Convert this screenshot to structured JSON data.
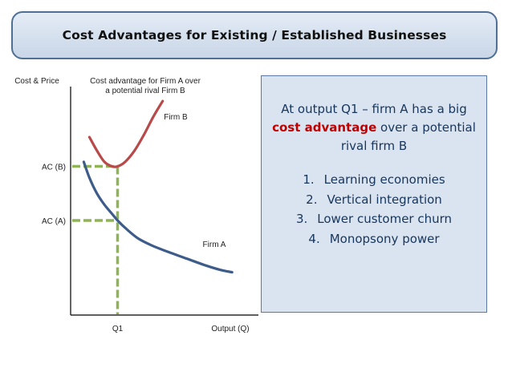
{
  "title": "Cost Advantages for Existing / Established Businesses",
  "info_box": {
    "intro_before": "At output Q1 – firm A has a big ",
    "intro_highlight": "cost advantage",
    "intro_after": " over a potential rival firm B",
    "items": [
      {
        "num": "1.",
        "text": "Learning economies"
      },
      {
        "num": "2.",
        "text": "Vertical integration"
      },
      {
        "num": "3.",
        "text": "Lower customer churn"
      },
      {
        "num": "4.",
        "text": "Monopsony power"
      }
    ]
  },
  "colors": {
    "firm_a": "#3d5c8a",
    "firm_b": "#b84a4a",
    "guides": "#8fb458",
    "axis": "#000000",
    "highlight": "#c00000"
  },
  "chart_data": {
    "type": "line",
    "ylabel": "Cost & Price",
    "xlabel": "Output (Q)",
    "annotation_lines": [
      "Cost advantage for Firm A over",
      "a potential rival Firm B"
    ],
    "xlim": [
      0,
      1
    ],
    "ylim": [
      0,
      1
    ],
    "x_ticks": [
      {
        "label": "Q1",
        "x": 0.25
      }
    ],
    "y_ticks": [
      {
        "label": "AC (B)",
        "y": 0.66
      },
      {
        "label": "AC (A)",
        "y": 0.42
      }
    ],
    "series": [
      {
        "name": "Firm A",
        "x": [
          0.07,
          0.1,
          0.14,
          0.18,
          0.22,
          0.25,
          0.3,
          0.36,
          0.43,
          0.52,
          0.62,
          0.72,
          0.8,
          0.86
        ],
        "y": [
          0.68,
          0.61,
          0.54,
          0.49,
          0.45,
          0.42,
          0.38,
          0.34,
          0.31,
          0.28,
          0.25,
          0.22,
          0.2,
          0.19
        ]
      },
      {
        "name": "Firm B",
        "x": [
          0.1,
          0.14,
          0.18,
          0.22,
          0.25,
          0.29,
          0.34,
          0.39,
          0.44,
          0.49
        ],
        "y": [
          0.79,
          0.73,
          0.68,
          0.66,
          0.66,
          0.68,
          0.73,
          0.8,
          0.88,
          0.95
        ]
      }
    ],
    "guides": [
      {
        "type": "horizontal",
        "y": 0.66,
        "x_to": 0.25
      },
      {
        "type": "horizontal",
        "y": 0.42,
        "x_to": 0.25
      },
      {
        "type": "vertical",
        "x": 0.25,
        "y_to": 0.66
      }
    ],
    "grid": false,
    "legend": "inline labels"
  }
}
